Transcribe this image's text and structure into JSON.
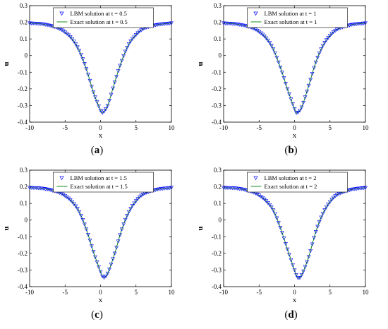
{
  "chart_data": [
    {
      "type": "scatter+line",
      "panel_label": "a",
      "xlabel": "x",
      "ylabel": "u",
      "xlim": [
        -10,
        10
      ],
      "ylim": [
        -0.4,
        0.3
      ],
      "xticks": [
        "-10",
        "-5",
        "0",
        "5",
        "10"
      ],
      "yticks": [
        "-0.4",
        "-0.3",
        "-0.2",
        "-0.1",
        "0",
        "0.1",
        "0.2",
        "0.3"
      ],
      "legend_position": "top-center",
      "series": [
        {
          "name": "LBM solution at t = 0.5",
          "style": "triangle-marker",
          "color": "#0000ff",
          "x": [
            -10,
            -8,
            -6,
            -5,
            -4,
            -3,
            -2,
            -1,
            0,
            0.2,
            1,
            2,
            3,
            4,
            5,
            6,
            8,
            10
          ],
          "y": [
            0.195,
            0.188,
            0.165,
            0.14,
            0.1,
            0.03,
            -0.08,
            -0.22,
            -0.33,
            -0.345,
            -0.3,
            -0.16,
            -0.03,
            0.07,
            0.125,
            0.16,
            0.185,
            0.195
          ]
        },
        {
          "name": "Exact solution at t = 0.5",
          "style": "line",
          "color": "#008000",
          "x": [
            -10,
            -8,
            -6,
            -5,
            -4,
            -3,
            -2,
            -1,
            0,
            0.2,
            1,
            2,
            3,
            4,
            5,
            6,
            8,
            10
          ],
          "y": [
            0.195,
            0.188,
            0.165,
            0.14,
            0.1,
            0.03,
            -0.08,
            -0.22,
            -0.33,
            -0.345,
            -0.3,
            -0.16,
            -0.03,
            0.07,
            0.125,
            0.16,
            0.185,
            0.195
          ]
        }
      ]
    },
    {
      "type": "scatter+line",
      "panel_label": "b",
      "xlabel": "x",
      "ylabel": "u",
      "xlim": [
        -10,
        10
      ],
      "ylim": [
        -0.4,
        0.3
      ],
      "xticks": [
        "-10",
        "-5",
        "0",
        "5",
        "10"
      ],
      "yticks": [
        "-0.4",
        "-0.3",
        "-0.2",
        "-0.1",
        "0",
        "0.1",
        "0.2",
        "0.3"
      ],
      "legend_position": "top-center",
      "series": [
        {
          "name": "LBM solution at t = 1",
          "style": "triangle-marker",
          "color": "#0000ff",
          "x": [
            -10,
            -8,
            -6,
            -5,
            -4,
            -3,
            -2,
            -1,
            0,
            0.3,
            1,
            2,
            3,
            4,
            5,
            6,
            8,
            10
          ],
          "y": [
            0.195,
            0.188,
            0.167,
            0.143,
            0.105,
            0.04,
            -0.07,
            -0.2,
            -0.32,
            -0.345,
            -0.31,
            -0.18,
            -0.04,
            0.06,
            0.12,
            0.157,
            0.185,
            0.195
          ]
        },
        {
          "name": "Exact solution at t = 1",
          "style": "line",
          "color": "#008000",
          "x": [
            -10,
            -8,
            -6,
            -5,
            -4,
            -3,
            -2,
            -1,
            0,
            0.3,
            1,
            2,
            3,
            4,
            5,
            6,
            8,
            10
          ],
          "y": [
            0.195,
            0.188,
            0.167,
            0.143,
            0.105,
            0.04,
            -0.07,
            -0.2,
            -0.32,
            -0.345,
            -0.31,
            -0.18,
            -0.04,
            0.06,
            0.12,
            0.157,
            0.185,
            0.195
          ]
        }
      ]
    },
    {
      "type": "scatter+line",
      "panel_label": "c",
      "xlabel": "x",
      "ylabel": "u",
      "xlim": [
        -10,
        10
      ],
      "ylim": [
        -0.4,
        0.3
      ],
      "xticks": [
        "-10",
        "-5",
        "0",
        "5",
        "10"
      ],
      "yticks": [
        "-0.4",
        "-0.3",
        "-0.2",
        "-0.1",
        "0",
        "0.1",
        "0.2",
        "0.3"
      ],
      "legend_position": "top-center",
      "series": [
        {
          "name": "LBM solution at t = 1.5",
          "style": "triangle-marker",
          "color": "#0000ff",
          "x": [
            -10,
            -8,
            -6,
            -5,
            -4,
            -3,
            -2,
            -1,
            0,
            0.4,
            1,
            2,
            3,
            4,
            5,
            6,
            8,
            10
          ],
          "y": [
            0.195,
            0.189,
            0.168,
            0.146,
            0.11,
            0.05,
            -0.055,
            -0.19,
            -0.31,
            -0.345,
            -0.32,
            -0.2,
            -0.055,
            0.05,
            0.115,
            0.155,
            0.184,
            0.195
          ]
        },
        {
          "name": "Exact solution at t = 1.5",
          "style": "line",
          "color": "#008000",
          "x": [
            -10,
            -8,
            -6,
            -5,
            -4,
            -3,
            -2,
            -1,
            0,
            0.4,
            1,
            2,
            3,
            4,
            5,
            6,
            8,
            10
          ],
          "y": [
            0.195,
            0.189,
            0.168,
            0.146,
            0.11,
            0.05,
            -0.055,
            -0.19,
            -0.31,
            -0.345,
            -0.32,
            -0.2,
            -0.055,
            0.05,
            0.115,
            0.155,
            0.184,
            0.195
          ]
        }
      ]
    },
    {
      "type": "scatter+line",
      "panel_label": "d",
      "xlabel": "x",
      "ylabel": "u",
      "xlim": [
        -10,
        10
      ],
      "ylim": [
        -0.4,
        0.3
      ],
      "xticks": [
        "-10",
        "-5",
        "0",
        "5",
        "10"
      ],
      "yticks": [
        "-0.4",
        "-0.3",
        "-0.2",
        "-0.1",
        "0",
        "0.1",
        "0.2",
        "0.3"
      ],
      "legend_position": "top-center",
      "series": [
        {
          "name": "LBM solution at t = 2",
          "style": "triangle-marker",
          "color": "#0000ff",
          "x": [
            -10,
            -8,
            -6,
            -5,
            -4,
            -3,
            -2,
            -1,
            0,
            0.5,
            1,
            2,
            3,
            4,
            5,
            6,
            8,
            10
          ],
          "y": [
            0.195,
            0.19,
            0.17,
            0.149,
            0.115,
            0.06,
            -0.045,
            -0.175,
            -0.3,
            -0.348,
            -0.33,
            -0.22,
            -0.07,
            0.04,
            0.11,
            0.152,
            0.183,
            0.195
          ]
        },
        {
          "name": "Exact solution at t = 2",
          "style": "line",
          "color": "#008000",
          "x": [
            -10,
            -8,
            -6,
            -5,
            -4,
            -3,
            -2,
            -1,
            0,
            0.5,
            1,
            2,
            3,
            4,
            5,
            6,
            8,
            10
          ],
          "y": [
            0.195,
            0.19,
            0.17,
            0.149,
            0.115,
            0.06,
            -0.045,
            -0.175,
            -0.3,
            -0.348,
            -0.33,
            -0.22,
            -0.07,
            0.04,
            0.11,
            0.152,
            0.183,
            0.195
          ]
        }
      ]
    }
  ]
}
